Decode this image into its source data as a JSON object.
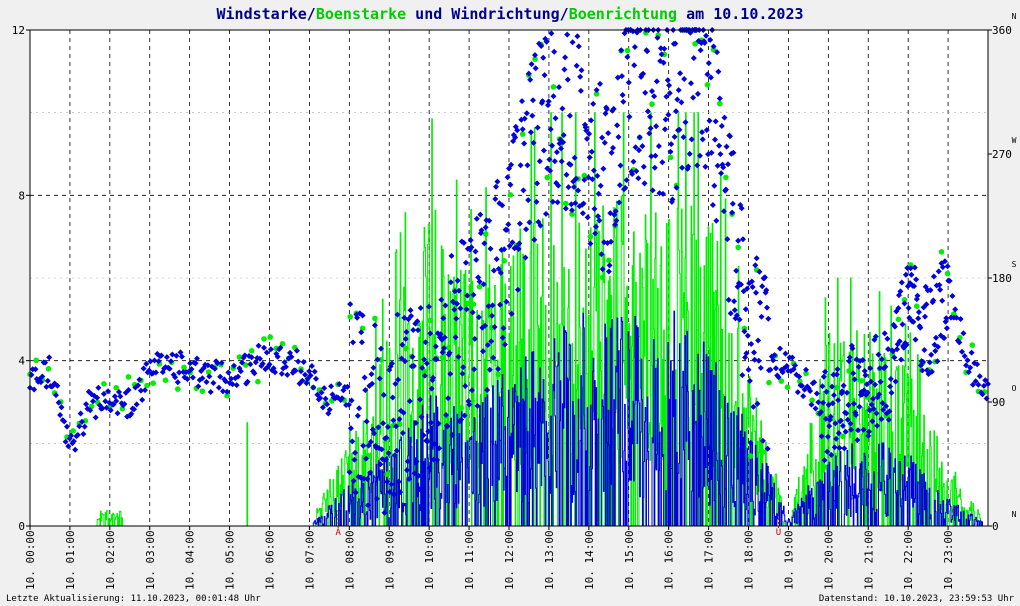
{
  "chart_data": {
    "type": "line",
    "title": {
      "part1": "Windstarke",
      "sep1": "/",
      "part2": "Boenstarke",
      "part3": " und ",
      "part4": "Windrichtung",
      "sep2": "/",
      "part5": "Boenrichtung",
      "part6": " am 10.10.2023"
    },
    "colors": {
      "wind": "#0000dd",
      "gust": "#00ee00",
      "title_dark": "#00008b",
      "title_green": "#00cc00"
    },
    "left_axis": {
      "min": 0,
      "max": 12,
      "ticks": [
        "0",
        "4",
        "8",
        "12"
      ]
    },
    "right_axis": {
      "min": 0,
      "max": 360,
      "ticks": [
        "0",
        "90",
        "180",
        "270",
        "360"
      ],
      "compass": [
        "N",
        "O",
        "S",
        "W",
        "N"
      ]
    },
    "x_range": [
      0,
      24
    ],
    "x_tick_labels": [
      "10. 00:00",
      "10. 01:00",
      "10. 02:00",
      "10. 03:00",
      "10. 04:00",
      "10. 05:00",
      "10. 06:00",
      "10. 07:00",
      "10. 08:00",
      "10. 09:00",
      "10. 10:00",
      "10. 11:00",
      "10. 12:00",
      "10. 13:00",
      "10. 14:00",
      "10. 15:00",
      "10. 16:00",
      "10. 17:00",
      "10. 18:00",
      "10. 19:00",
      "10. 20:00",
      "10. 21:00",
      "10. 22:00",
      "10. 23:00"
    ],
    "sunrise": {
      "hour": 7.72,
      "label": "A"
    },
    "sunset": {
      "hour": 18.75,
      "label": "U"
    },
    "wind_profile": [
      [
        0,
        0
      ],
      [
        1,
        0
      ],
      [
        2,
        0
      ],
      [
        3,
        0
      ],
      [
        4,
        0
      ],
      [
        5,
        0
      ],
      [
        6,
        0
      ],
      [
        7,
        0
      ],
      [
        8,
        0.6
      ],
      [
        9,
        1.0
      ],
      [
        10,
        1.8
      ],
      [
        11,
        1.5
      ],
      [
        12,
        2.2
      ],
      [
        13,
        2.6
      ],
      [
        14,
        3.0
      ],
      [
        15,
        2.8
      ],
      [
        16,
        3.0
      ],
      [
        17,
        2.4
      ],
      [
        18,
        1.5
      ],
      [
        19,
        0.1
      ],
      [
        20,
        1.0
      ],
      [
        21,
        1.2
      ],
      [
        22,
        1.0
      ],
      [
        23,
        0.4
      ],
      [
        24,
        0
      ]
    ],
    "gust_profile": [
      [
        0,
        0
      ],
      [
        1,
        0
      ],
      [
        2,
        0.3
      ],
      [
        3,
        0
      ],
      [
        4,
        0
      ],
      [
        5,
        0
      ],
      [
        6,
        0
      ],
      [
        7,
        0
      ],
      [
        8,
        1.5
      ],
      [
        9,
        3.0
      ],
      [
        10,
        5.0
      ],
      [
        11,
        3.8
      ],
      [
        12,
        4.5
      ],
      [
        13,
        5.0
      ],
      [
        14,
        5.0
      ],
      [
        15,
        5.0
      ],
      [
        16,
        5.0
      ],
      [
        17,
        5.0
      ],
      [
        18,
        2.5
      ],
      [
        19,
        0
      ],
      [
        20,
        3.0
      ],
      [
        21,
        3.0
      ],
      [
        22,
        2.4
      ],
      [
        23,
        1.0
      ],
      [
        24,
        0
      ]
    ],
    "direction_profile": [
      [
        0,
        105
      ],
      [
        0.5,
        112
      ],
      [
        1,
        55
      ],
      [
        1.5,
        90
      ],
      [
        2,
        90
      ],
      [
        2.5,
        90
      ],
      [
        3,
        110
      ],
      [
        3.5,
        120
      ],
      [
        4,
        110
      ],
      [
        5,
        108
      ],
      [
        6,
        125
      ],
      [
        6.5,
        120
      ],
      [
        7,
        110
      ],
      [
        7.5,
        92
      ],
      [
        8,
        100
      ],
      [
        8.5,
        75
      ],
      [
        9,
        80
      ],
      [
        10,
        100
      ],
      [
        10.5,
        130
      ],
      [
        11,
        145
      ],
      [
        11.5,
        170
      ],
      [
        12,
        200
      ],
      [
        12.5,
        270
      ],
      [
        13,
        290
      ],
      [
        13.5,
        300
      ],
      [
        14,
        270
      ],
      [
        14.5,
        250
      ],
      [
        15,
        320
      ],
      [
        15.5,
        310
      ],
      [
        16,
        300
      ],
      [
        16.5,
        330
      ],
      [
        17,
        320
      ],
      [
        17.5,
        230
      ],
      [
        18,
        130
      ],
      [
        18.5,
        120
      ],
      [
        19,
        115
      ],
      [
        19.5,
        100
      ],
      [
        20,
        75
      ],
      [
        20.5,
        95
      ],
      [
        21,
        100
      ],
      [
        21.5,
        110
      ],
      [
        22,
        160
      ],
      [
        22.5,
        140
      ],
      [
        23,
        170
      ],
      [
        23.5,
        120
      ],
      [
        24,
        95
      ]
    ]
  },
  "footer": {
    "left": "Letzte Aktualisierung: 11.10.2023, 00:01:48 Uhr",
    "right": "Datenstand: 10.10.2023, 23:59:53 Uhr"
  }
}
